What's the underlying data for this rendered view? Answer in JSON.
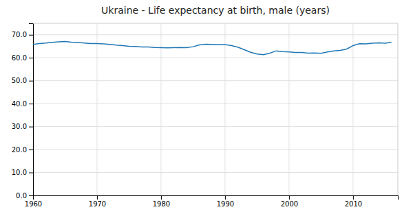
{
  "chart_data": {
    "type": "line",
    "title": "Ukraine - Life expectancy at birth, male (years)",
    "x": [
      1960,
      1961,
      1962,
      1963,
      1964,
      1965,
      1966,
      1967,
      1968,
      1969,
      1970,
      1971,
      1972,
      1973,
      1974,
      1975,
      1976,
      1977,
      1978,
      1979,
      1980,
      1981,
      1982,
      1983,
      1984,
      1985,
      1986,
      1987,
      1988,
      1989,
      1990,
      1991,
      1992,
      1993,
      1994,
      1995,
      1996,
      1997,
      1998,
      1999,
      2000,
      2001,
      2002,
      2003,
      2004,
      2005,
      2006,
      2007,
      2008,
      2009,
      2010,
      2011,
      2012,
      2013,
      2014,
      2015,
      2016
    ],
    "values": [
      65.8,
      66.2,
      66.4,
      66.7,
      66.9,
      67.1,
      66.8,
      66.6,
      66.4,
      66.2,
      66.2,
      66.0,
      65.8,
      65.5,
      65.3,
      65.0,
      64.9,
      64.7,
      64.7,
      64.5,
      64.4,
      64.3,
      64.4,
      64.5,
      64.4,
      64.8,
      65.6,
      65.9,
      65.8,
      65.7,
      65.7,
      65.3,
      64.6,
      63.5,
      62.4,
      61.6,
      61.3,
      62.0,
      63.0,
      62.7,
      62.5,
      62.3,
      62.3,
      62.0,
      62.1,
      61.9,
      62.5,
      63.0,
      63.2,
      63.8,
      65.3,
      66.1,
      66.0,
      66.3,
      66.5,
      66.3,
      66.7
    ],
    "xlim": [
      1960,
      2017
    ],
    "xticks": [
      1960,
      1970,
      1980,
      1990,
      2000,
      2010
    ],
    "ylim": [
      0.0,
      75.0
    ],
    "yticks": [
      {
        "value": 0.0,
        "label": "0.0"
      },
      {
        "value": 10.0,
        "label": "10.0"
      },
      {
        "value": 20.0,
        "label": "20.0"
      },
      {
        "value": 30.0,
        "label": "30.0"
      },
      {
        "value": 40.0,
        "label": "40.0"
      },
      {
        "value": 50.0,
        "label": "50.0"
      },
      {
        "value": 60.0,
        "label": "60.0"
      },
      {
        "value": 70.0,
        "label": "70.0"
      }
    ],
    "grid": true
  }
}
